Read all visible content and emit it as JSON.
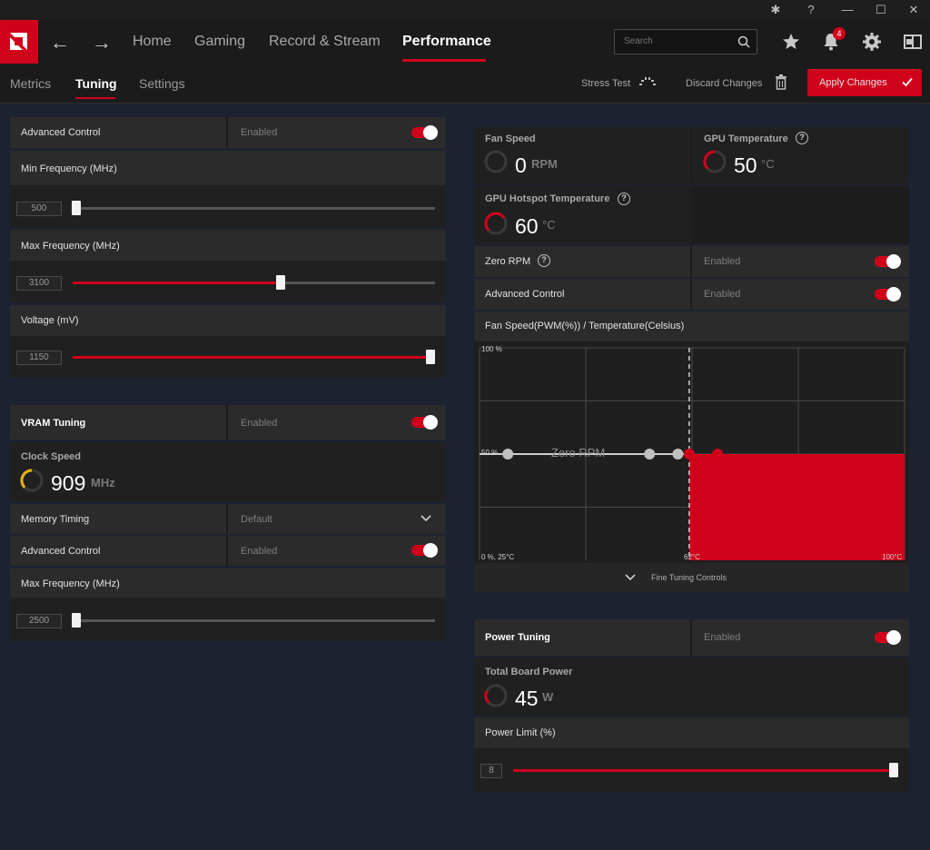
{
  "topnav": {
    "items": [
      {
        "label": "Home"
      },
      {
        "label": "Gaming"
      },
      {
        "label": "Record & Stream"
      },
      {
        "label": "Performance"
      }
    ],
    "search_placeholder": "Search",
    "notification_count": "4"
  },
  "subnav": {
    "tabs": [
      {
        "label": "Metrics"
      },
      {
        "label": "Tuning"
      },
      {
        "label": "Settings"
      }
    ],
    "stress_test": "Stress Test",
    "discard": "Discard Changes",
    "apply": "Apply Changes"
  },
  "gpu": {
    "advanced_control": {
      "label": "Advanced Control",
      "state": "Enabled"
    },
    "min_freq": {
      "label": "Min Frequency (MHz)",
      "value": "500",
      "fraction": 0.0
    },
    "max_freq": {
      "label": "Max Frequency (MHz)",
      "value": "3100",
      "fraction": 0.57
    },
    "voltage": {
      "label": "Voltage (mV)",
      "value": "1150",
      "fraction": 1.0
    }
  },
  "vram": {
    "title": "VRAM Tuning",
    "state": "Enabled",
    "clock_label": "Clock Speed",
    "clock_value": "909",
    "clock_unit": "MHz",
    "memory_timing": {
      "label": "Memory Timing",
      "value": "Default"
    },
    "advanced_control": {
      "label": "Advanced Control",
      "state": "Enabled"
    },
    "max_freq": {
      "label": "Max Frequency (MHz)",
      "value": "2500",
      "fraction": 0.0
    }
  },
  "fan": {
    "fan_speed": {
      "label": "Fan Speed",
      "value": "0",
      "unit": "RPM"
    },
    "gpu_temp": {
      "label": "GPU Temperature",
      "value": "50",
      "unit": "°C"
    },
    "hotspot": {
      "label": "GPU Hotspot Temperature",
      "value": "60",
      "unit": "°C"
    },
    "zero_rpm": {
      "label": "Zero RPM",
      "state": "Enabled"
    },
    "advanced_control": {
      "label": "Advanced Control",
      "state": "Enabled"
    },
    "curve_title": "Fan Speed(PWM(%)) / Temperature(Celsius)",
    "fine_tuning": "Fine Tuning Controls"
  },
  "chart_data": {
    "type": "line",
    "title": "Fan Speed(PWM(%)) / Temperature(Celsius)",
    "y_top_label": "100 %",
    "y_mid_label": "50 %",
    "origin_label": "0 %, 25°C",
    "x_mark_label": "62°C",
    "x_end_label": "100°C",
    "zero_rpm_label": "Zero RPM",
    "xlim": [
      25,
      100
    ],
    "ylim": [
      0,
      100
    ],
    "zero_rpm_threshold": 62,
    "series": [
      {
        "x": [
          30,
          55,
          60,
          62,
          67
        ],
        "y": [
          50,
          50,
          50,
          50,
          50
        ]
      }
    ],
    "accent_color": "#d0021b"
  },
  "power": {
    "title": "Power Tuning",
    "state": "Enabled",
    "board_label": "Total Board Power",
    "board_value": "45",
    "board_unit": "W",
    "limit_label": "Power Limit (%)",
    "limit_value": "8",
    "limit_fraction": 1.0
  }
}
